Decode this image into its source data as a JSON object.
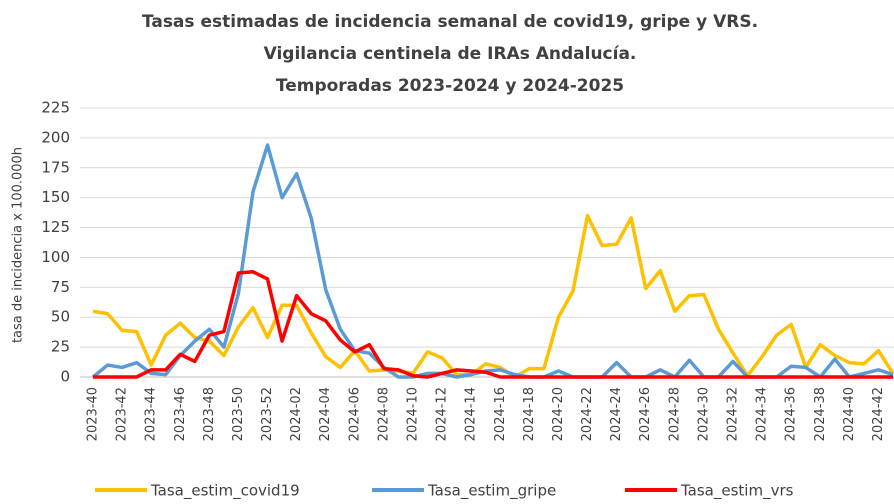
{
  "chart_data": {
    "type": "line",
    "title": [
      "Tasas estimadas de incidencia semanal de covid19, gripe y VRS.",
      "Vigilancia centinela de IRAs Andalucía.",
      "Temporadas 2023-2024 y 2024-2025"
    ],
    "y_label": "tasa de incidencia x 100.000h",
    "categories": [
      "2023-40",
      null,
      "2023-42",
      null,
      "2023-44",
      null,
      "2023-46",
      null,
      "2023-48",
      null,
      "2023-50",
      null,
      "2023-52",
      null,
      "2024-02",
      null,
      "2024-04",
      null,
      "2024-06",
      null,
      "2024-08",
      null,
      "2024-10",
      null,
      "2024-12",
      null,
      "2024-14",
      null,
      "2024-16",
      null,
      "2024-18",
      null,
      "2024-20",
      null,
      "2024-22",
      null,
      "2024-24",
      null,
      "2024-26",
      null,
      "2024-28",
      null,
      "2024-30",
      null,
      "2024-32",
      null,
      "2024-34",
      null,
      "2024-36",
      null,
      "2024-38",
      null,
      "2024-40",
      null,
      "2024-42",
      null
    ],
    "series": [
      {
        "name": "Tasa_estim_covid19",
        "color": "#ffc000",
        "values": [
          55,
          53,
          39,
          38,
          10,
          35,
          45,
          33,
          30,
          18,
          42,
          58,
          33,
          60,
          60,
          37,
          17,
          8,
          22,
          5,
          6,
          5,
          3,
          21,
          16,
          2,
          2,
          11,
          8,
          0,
          7,
          7,
          50,
          72,
          135,
          110,
          111,
          133,
          74,
          89,
          55,
          68,
          69,
          40,
          20,
          1,
          17,
          35,
          44,
          8,
          27,
          18,
          12,
          11,
          22,
          3
        ]
      },
      {
        "name": "Tasa_estim_gripe",
        "color": "#5b9bd5",
        "values": [
          0,
          10,
          8,
          12,
          3,
          2,
          18,
          30,
          40,
          25,
          70,
          155,
          194,
          150,
          170,
          133,
          73,
          40,
          22,
          20,
          8,
          0,
          0,
          3,
          3,
          0,
          2,
          5,
          6,
          2,
          0,
          0,
          5,
          0,
          0,
          0,
          12,
          0,
          0,
          6,
          0,
          14,
          0,
          0,
          13,
          0,
          0,
          0,
          9,
          8,
          0,
          15,
          0,
          3,
          6,
          2
        ]
      },
      {
        "name": "Tasa_estim_vrs",
        "color": "#ff0000",
        "values": [
          0,
          0,
          0,
          0,
          6,
          6,
          19,
          13,
          35,
          38,
          87,
          88,
          82,
          30,
          68,
          53,
          47,
          31,
          21,
          27,
          7,
          6,
          1,
          0,
          3,
          6,
          5,
          4,
          0,
          0,
          0,
          0,
          0,
          0,
          0,
          0,
          0,
          0,
          0,
          0,
          0,
          0,
          0,
          0,
          0,
          0,
          0,
          0,
          0,
          0,
          0,
          0,
          0,
          0,
          0,
          0
        ]
      }
    ],
    "ylim": [
      0,
      225
    ],
    "yticks": [
      0,
      25,
      50,
      75,
      100,
      125,
      150,
      175,
      200,
      225
    ],
    "legend": "bottom"
  }
}
